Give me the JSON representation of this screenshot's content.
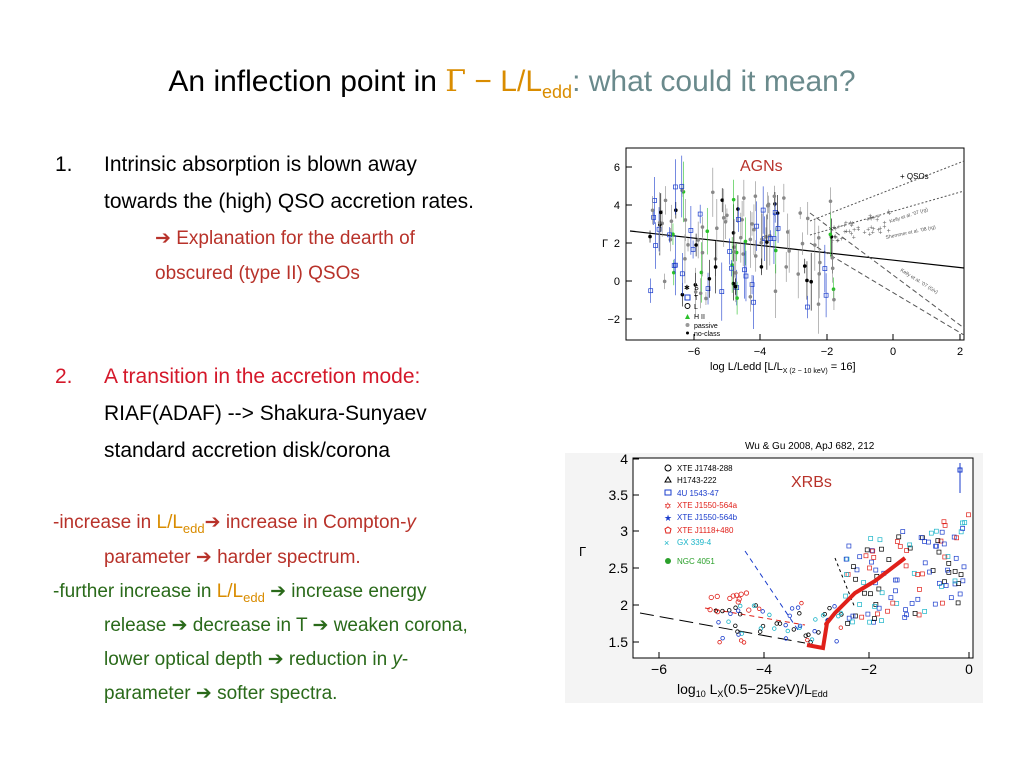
{
  "title": {
    "prefix": "An inflection point in ",
    "gamma": "Γ",
    "dash": " − ",
    "ll": "L/L",
    "ll_sub": "edd",
    "rest": ": what could it mean?"
  },
  "item1": {
    "num": "1.",
    "line1": "Intrinsic absorption is blown away",
    "line2": "towards the (high) QSO  accretion rates.",
    "arrow": "➔",
    "explain1": " Explanation for the dearth of",
    "explain2": "obscured (type II) QSOs"
  },
  "item2": {
    "num": "2.",
    "line1": "A transition in the accretion mode:",
    "line2": "RIAF(ADAF) --> Shakura-Sunyaev",
    "line3": "standard accretion disk/corona"
  },
  "bullets": {
    "b1_a": "-increase in ",
    "b1_ll": "L/L",
    "b1_sub": "edd",
    "b1_b": "➔ increase in Compton-",
    "b1_y": "y",
    "b1_c": "parameter ",
    "b1_arrow": "➔",
    "b1_d": " harder spectrum.",
    "b2_a": "-further increase in ",
    "b2_ll": "L/L",
    "b2_sub": "edd",
    "b2_b": " ➔ increase energy",
    "b2_c": "release ➔ decrease in T ➔ weaken corona,",
    "b2_d": "lower optical depth ➔ reduction in ",
    "b2_y": "y",
    "b2_e": "-",
    "b2_f": "parameter ➔ softer spectra."
  },
  "fig_agn": {
    "label": "AGNs",
    "ylabel": "Γ",
    "xlabel": "log L/Ledd [L/L",
    "xlabel_sub": "X (2 − 10 keV)",
    "xlabel_end": " = 16]",
    "yticks": [
      "6",
      "4",
      "2",
      "0",
      "−2"
    ],
    "xticks": [
      "−6",
      "−4",
      "−2",
      "0",
      "2"
    ],
    "legend": [
      "S",
      "T",
      "L",
      "H II",
      "passive",
      "no-class"
    ],
    "qso_label": "+ QSOs",
    "fit_labels": [
      "Kelly et al. '07 (rg)",
      "Shemmer et al. '08 (rg)",
      "Kelly et al. '07 (Giv)"
    ]
  },
  "fig_xrb": {
    "label": "XRBs",
    "citation": "Wu & Gu 2008, ApJ 682, 212",
    "ylabel": "Γ",
    "yticks": [
      "4",
      "3.5",
      "3",
      "2.5",
      "2",
      "1.5"
    ],
    "xticks": [
      "−6",
      "−4",
      "−2",
      "0"
    ],
    "xlabel": "log",
    "xlabel_sub": "10",
    "xlabel_rest": " L",
    "xlabel_x": "X",
    "xlabel_band": "(0.5−25keV)/L",
    "xlabel_edd": "Edd",
    "legend": [
      {
        "name": "XTE J1748-288",
        "color": "#000000"
      },
      {
        "name": "H1743-222",
        "color": "#000000"
      },
      {
        "name": "4U 1543-47",
        "color": "#1a3ccc"
      },
      {
        "name": "XTE J1550-564a",
        "color": "#e0201a"
      },
      {
        "name": "XTE J1550-564b",
        "color": "#1a3ccc"
      },
      {
        "name": "XTE J1118+480",
        "color": "#e0201a"
      },
      {
        "name": "GX 339-4",
        "color": "#19b4c8"
      },
      {
        "name": "NGC 4051",
        "color": "#2aa02a"
      }
    ]
  }
}
